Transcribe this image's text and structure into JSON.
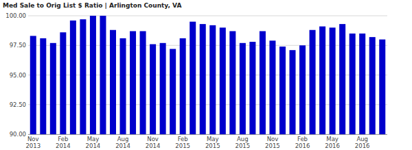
{
  "chart_data": {
    "type": "bar",
    "title": "Med Sale to Orig List $ Ratio | Arlington County, VA",
    "categories": [
      "Nov 2013",
      null,
      null,
      "Feb 2014",
      null,
      null,
      "May 2014",
      null,
      null,
      "Aug 2014",
      null,
      null,
      "Nov 2014",
      null,
      null,
      "Feb 2015",
      null,
      null,
      "May 2015",
      null,
      null,
      "Aug 2015",
      null,
      null,
      "Nov 2015",
      null,
      null,
      "Feb 2016",
      null,
      null,
      "May 2016",
      null,
      null,
      "Aug 2016",
      null,
      null
    ],
    "values": [
      98.3,
      98.1,
      97.7,
      98.6,
      99.6,
      99.7,
      100.0,
      100.0,
      98.8,
      98.1,
      98.7,
      98.7,
      97.6,
      97.7,
      97.2,
      98.1,
      99.5,
      99.3,
      99.2,
      99.0,
      98.7,
      97.7,
      97.8,
      98.7,
      97.9,
      97.4,
      97.1,
      97.5,
      98.8,
      99.1,
      99.0,
      99.3,
      98.5,
      98.5,
      98.2,
      98.0
    ],
    "color": "#0000cc",
    "ylim": [
      90,
      100
    ],
    "yticks": [
      {
        "value": 90,
        "label": "90.00"
      },
      {
        "value": 92.5,
        "label": "92.50"
      },
      {
        "value": 95,
        "label": "95.00"
      },
      {
        "value": 97.5,
        "label": "97.50"
      },
      {
        "value": 100,
        "label": "100.00"
      }
    ],
    "grid": true
  }
}
